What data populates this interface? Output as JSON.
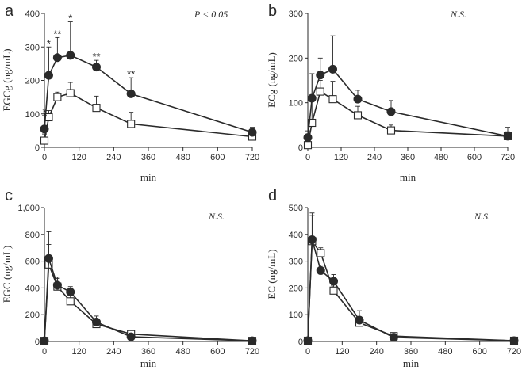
{
  "chart_data": [
    {
      "panel": "a",
      "type": "line",
      "xlabel": "min",
      "ylabel": "EGCg (ng/mL)",
      "xlim": [
        0,
        720
      ],
      "ylim": [
        0,
        400
      ],
      "xticks": [
        0,
        120,
        240,
        360,
        480,
        600,
        720
      ],
      "yticks": [
        0,
        100,
        200,
        300,
        400
      ],
      "ytick_labels": [
        "0",
        "100",
        "200",
        "300",
        "400"
      ],
      "annotation": "P < 0.05",
      "series": [
        {
          "marker": "filled-circle",
          "x": [
            0,
            15,
            45,
            90,
            180,
            300,
            720
          ],
          "y": [
            55,
            215,
            268,
            275,
            240,
            160,
            45
          ],
          "err": [
            40,
            85,
            60,
            100,
            20,
            48,
            15
          ],
          "sig": [
            "*",
            "*",
            "**",
            "*",
            "**",
            "**",
            ""
          ]
        },
        {
          "marker": "open-square",
          "x": [
            0,
            15,
            45,
            90,
            180,
            300,
            720
          ],
          "y": [
            20,
            90,
            150,
            162,
            118,
            70,
            32
          ],
          "err": [
            20,
            20,
            15,
            32,
            35,
            35,
            8
          ]
        }
      ]
    },
    {
      "panel": "b",
      "type": "line",
      "xlabel": "min",
      "ylabel": "ECg (ng/mL)",
      "xlim": [
        0,
        720
      ],
      "ylim": [
        0,
        300
      ],
      "xticks": [
        0,
        120,
        240,
        360,
        480,
        600,
        720
      ],
      "yticks": [
        0,
        100,
        200,
        300
      ],
      "ytick_labels": [
        "0",
        "100",
        "200",
        "300"
      ],
      "annotation": "N.S.",
      "series": [
        {
          "marker": "filled-circle",
          "x": [
            0,
            15,
            45,
            90,
            180,
            300,
            720
          ],
          "y": [
            22,
            110,
            162,
            175,
            108,
            80,
            25
          ],
          "err": [
            15,
            55,
            38,
            75,
            20,
            25,
            10
          ]
        },
        {
          "marker": "open-square",
          "x": [
            0,
            15,
            45,
            90,
            180,
            300,
            720
          ],
          "y": [
            5,
            55,
            125,
            108,
            72,
            38,
            25
          ],
          "err": [
            5,
            110,
            25,
            40,
            20,
            12,
            20
          ]
        }
      ]
    },
    {
      "panel": "c",
      "type": "line",
      "xlabel": "min",
      "ylabel": "EGC (ng/mL)",
      "xlim": [
        0,
        720
      ],
      "ylim": [
        0,
        1000
      ],
      "xticks": [
        0,
        120,
        240,
        360,
        480,
        600,
        720
      ],
      "yticks": [
        0,
        200,
        400,
        600,
        800,
        1000
      ],
      "ytick_labels": [
        "0",
        "200",
        "400",
        "600",
        "800",
        "1,000"
      ],
      "annotation": "N.S.",
      "series": [
        {
          "marker": "filled-circle",
          "x": [
            0,
            15,
            45,
            90,
            180,
            300,
            720
          ],
          "y": [
            5,
            620,
            420,
            370,
            145,
            35,
            5
          ],
          "err": [
            5,
            200,
            60,
            40,
            45,
            15,
            5
          ]
        },
        {
          "marker": "open-square",
          "x": [
            0,
            15,
            45,
            90,
            180,
            300,
            720
          ],
          "y": [
            5,
            575,
            410,
            300,
            130,
            55,
            5
          ],
          "err": [
            5,
            150,
            60,
            40,
            40,
            30,
            5
          ]
        }
      ]
    },
    {
      "panel": "d",
      "type": "line",
      "xlabel": "min",
      "ylabel": "EC (ng/mL)",
      "xlim": [
        0,
        720
      ],
      "ylim": [
        0,
        500
      ],
      "xticks": [
        0,
        120,
        240,
        360,
        480,
        600,
        720
      ],
      "yticks": [
        0,
        100,
        200,
        300,
        400,
        500
      ],
      "ytick_labels": [
        "0",
        "100",
        "200",
        "300",
        "400",
        "500"
      ],
      "annotation": "N.S.",
      "series": [
        {
          "marker": "filled-circle",
          "x": [
            0,
            15,
            45,
            90,
            180,
            300,
            720
          ],
          "y": [
            3,
            380,
            265,
            225,
            80,
            15,
            3
          ],
          "err": [
            5,
            100,
            20,
            25,
            35,
            10,
            5
          ]
        },
        {
          "marker": "open-square",
          "x": [
            0,
            15,
            45,
            90,
            180,
            300,
            720
          ],
          "y": [
            3,
            375,
            330,
            190,
            70,
            20,
            3
          ],
          "err": [
            5,
            95,
            20,
            25,
            20,
            8,
            5
          ]
        }
      ]
    }
  ]
}
